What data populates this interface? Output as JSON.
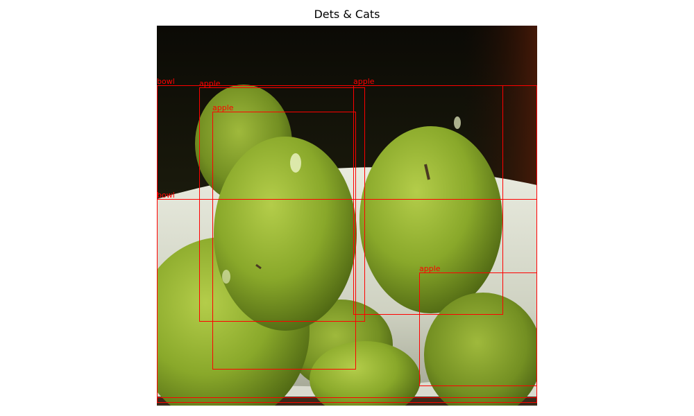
{
  "figure": {
    "title": "Dets & Cats"
  },
  "photo": {
    "description_icon": "green-apples-in-bowl-photo"
  },
  "colors": {
    "box": "#ff0000",
    "background": "#ffffff"
  },
  "detections": [
    {
      "label": "bowl"
    },
    {
      "label": "apple"
    },
    {
      "label": "apple"
    },
    {
      "label": "apple"
    },
    {
      "label": "bowl"
    },
    {
      "label": "apple"
    }
  ]
}
